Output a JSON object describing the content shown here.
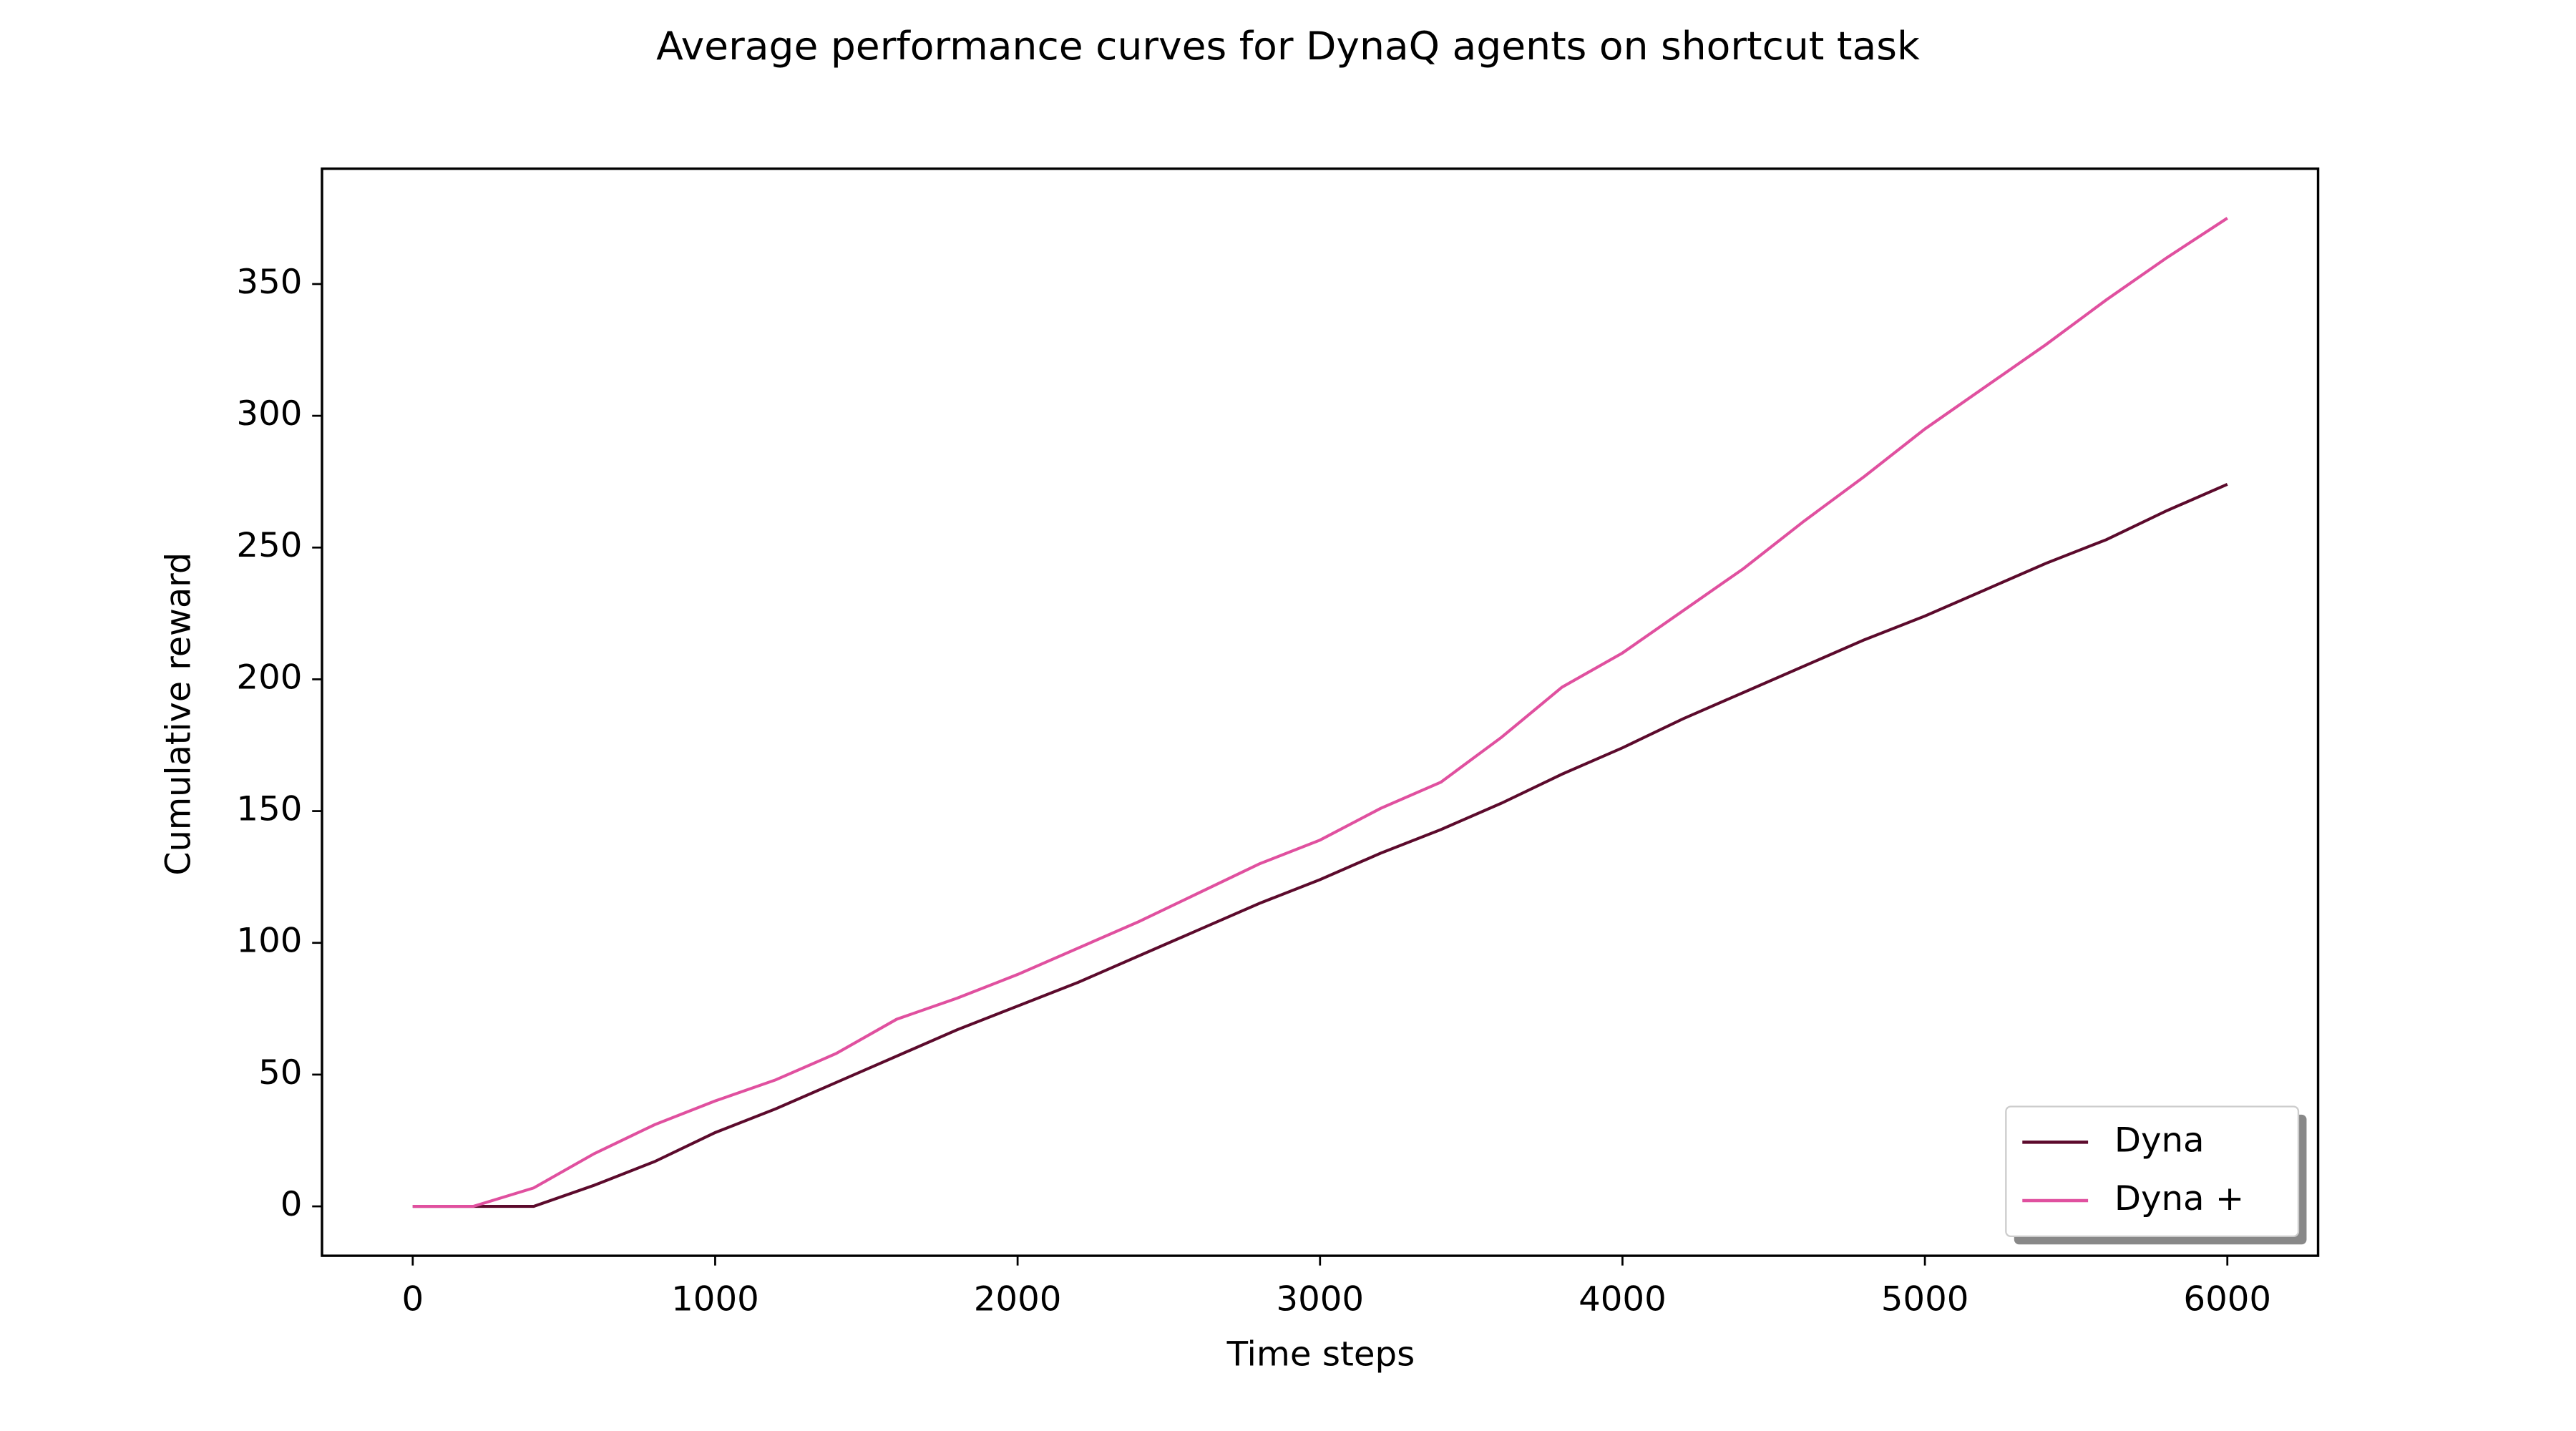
{
  "chart_data": {
    "type": "line",
    "title": "Average performance curves for DynaQ agents on shortcut task",
    "x_label": "Time steps",
    "y_label": "Cumulative reward",
    "x": [
      0,
      200,
      400,
      600,
      800,
      1000,
      1200,
      1400,
      1600,
      1800,
      2000,
      2200,
      2400,
      2600,
      2800,
      3000,
      3200,
      3400,
      3600,
      3800,
      4000,
      4200,
      4400,
      4600,
      4800,
      5000,
      5200,
      5400,
      5600,
      5800,
      6000
    ],
    "series": [
      {
        "name": "Dyna",
        "color": "#5c0a2c",
        "values": [
          0,
          0,
          0,
          8,
          17,
          28,
          37,
          47,
          57,
          67,
          76,
          85,
          95,
          105,
          115,
          124,
          134,
          143,
          153,
          164,
          174,
          185,
          195,
          205,
          215,
          224,
          234,
          244,
          253,
          264,
          274
        ]
      },
      {
        "name": "Dyna +",
        "color": "#e0509f",
        "values": [
          0,
          0,
          7,
          20,
          31,
          40,
          48,
          58,
          71,
          79,
          88,
          98,
          108,
          119,
          130,
          139,
          151,
          161,
          178,
          197,
          210,
          226,
          242,
          260,
          277,
          295,
          311,
          327,
          344,
          360,
          375
        ]
      }
    ],
    "xlim": [
      -300,
      6300
    ],
    "ylim": [
      -18.75,
      393.75
    ],
    "xticks": [
      0,
      1000,
      2000,
      3000,
      4000,
      5000,
      6000
    ],
    "yticks": [
      0,
      50,
      100,
      150,
      200,
      250,
      300,
      350
    ],
    "legend": "lower right"
  }
}
